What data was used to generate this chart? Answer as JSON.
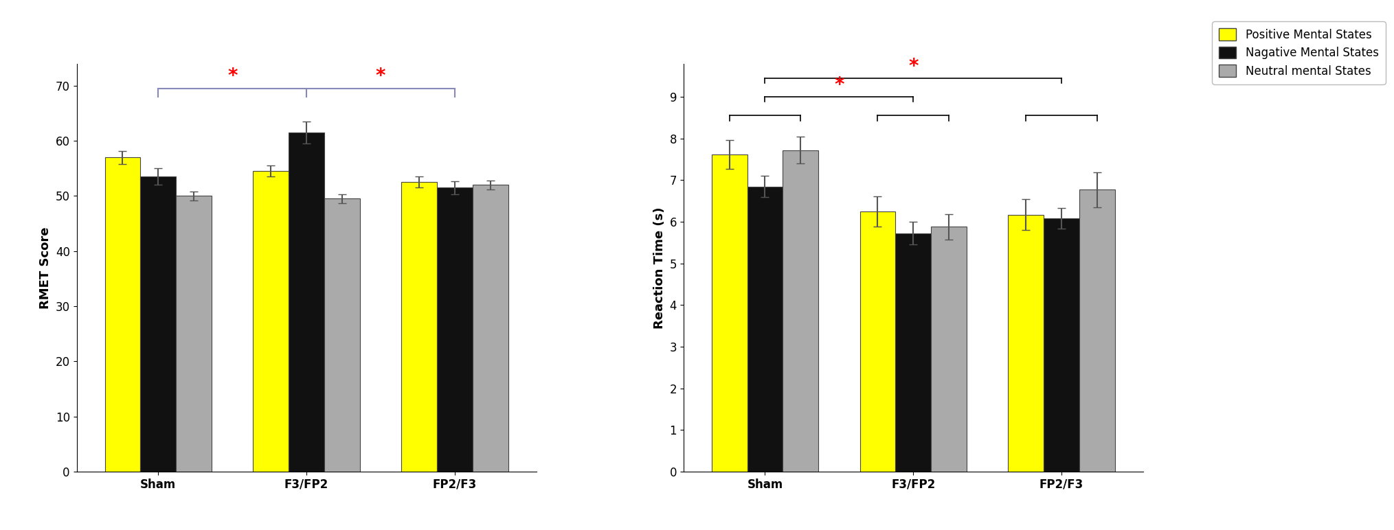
{
  "left": {
    "categories": [
      "Sham",
      "F3/FP2",
      "FP2/F3"
    ],
    "positive": [
      57.0,
      54.5,
      52.5
    ],
    "negative": [
      53.5,
      61.5,
      51.5
    ],
    "neutral": [
      50.0,
      49.5,
      52.0
    ],
    "positive_err": [
      1.2,
      1.0,
      1.0
    ],
    "negative_err": [
      1.5,
      2.0,
      1.2
    ],
    "neutral_err": [
      0.8,
      0.8,
      0.8
    ],
    "ylabel": "RMET Score",
    "ylim": [
      0,
      74
    ],
    "yticks": [
      0,
      10,
      20,
      30,
      40,
      50,
      60,
      70
    ],
    "bracket_color": "#8888bb"
  },
  "right": {
    "categories": [
      "Sham",
      "F3/FP2",
      "FP2/F3"
    ],
    "positive": [
      7.62,
      6.25,
      6.17
    ],
    "negative": [
      6.85,
      5.73,
      6.08
    ],
    "neutral": [
      7.72,
      5.88,
      6.77
    ],
    "positive_err": [
      0.35,
      0.37,
      0.37
    ],
    "negative_err": [
      0.25,
      0.28,
      0.25
    ],
    "neutral_err": [
      0.32,
      0.3,
      0.42
    ],
    "ylabel": "Reaction Time (s)",
    "ylim": [
      0,
      9.8
    ],
    "yticks": [
      0,
      1,
      2,
      3,
      4,
      5,
      6,
      7,
      8,
      9
    ]
  },
  "bar_colors": [
    "#ffff00",
    "#111111",
    "#aaaaaa"
  ],
  "bar_edgecolor": "#444444",
  "legend_labels": [
    "Positive Mental States",
    "Nagative Mental States",
    "Neutral mental States"
  ],
  "legend_colors": [
    "#ffff00",
    "#111111",
    "#aaaaaa"
  ],
  "bar_width": 0.24,
  "sig_color": "red",
  "sig_fontsize": 20,
  "errorbar_color": "#555555",
  "errorbar_capsize": 4,
  "errorbar_linewidth": 1.5,
  "axis_fontsize": 13,
  "tick_fontsize": 12,
  "legend_fontsize": 12
}
